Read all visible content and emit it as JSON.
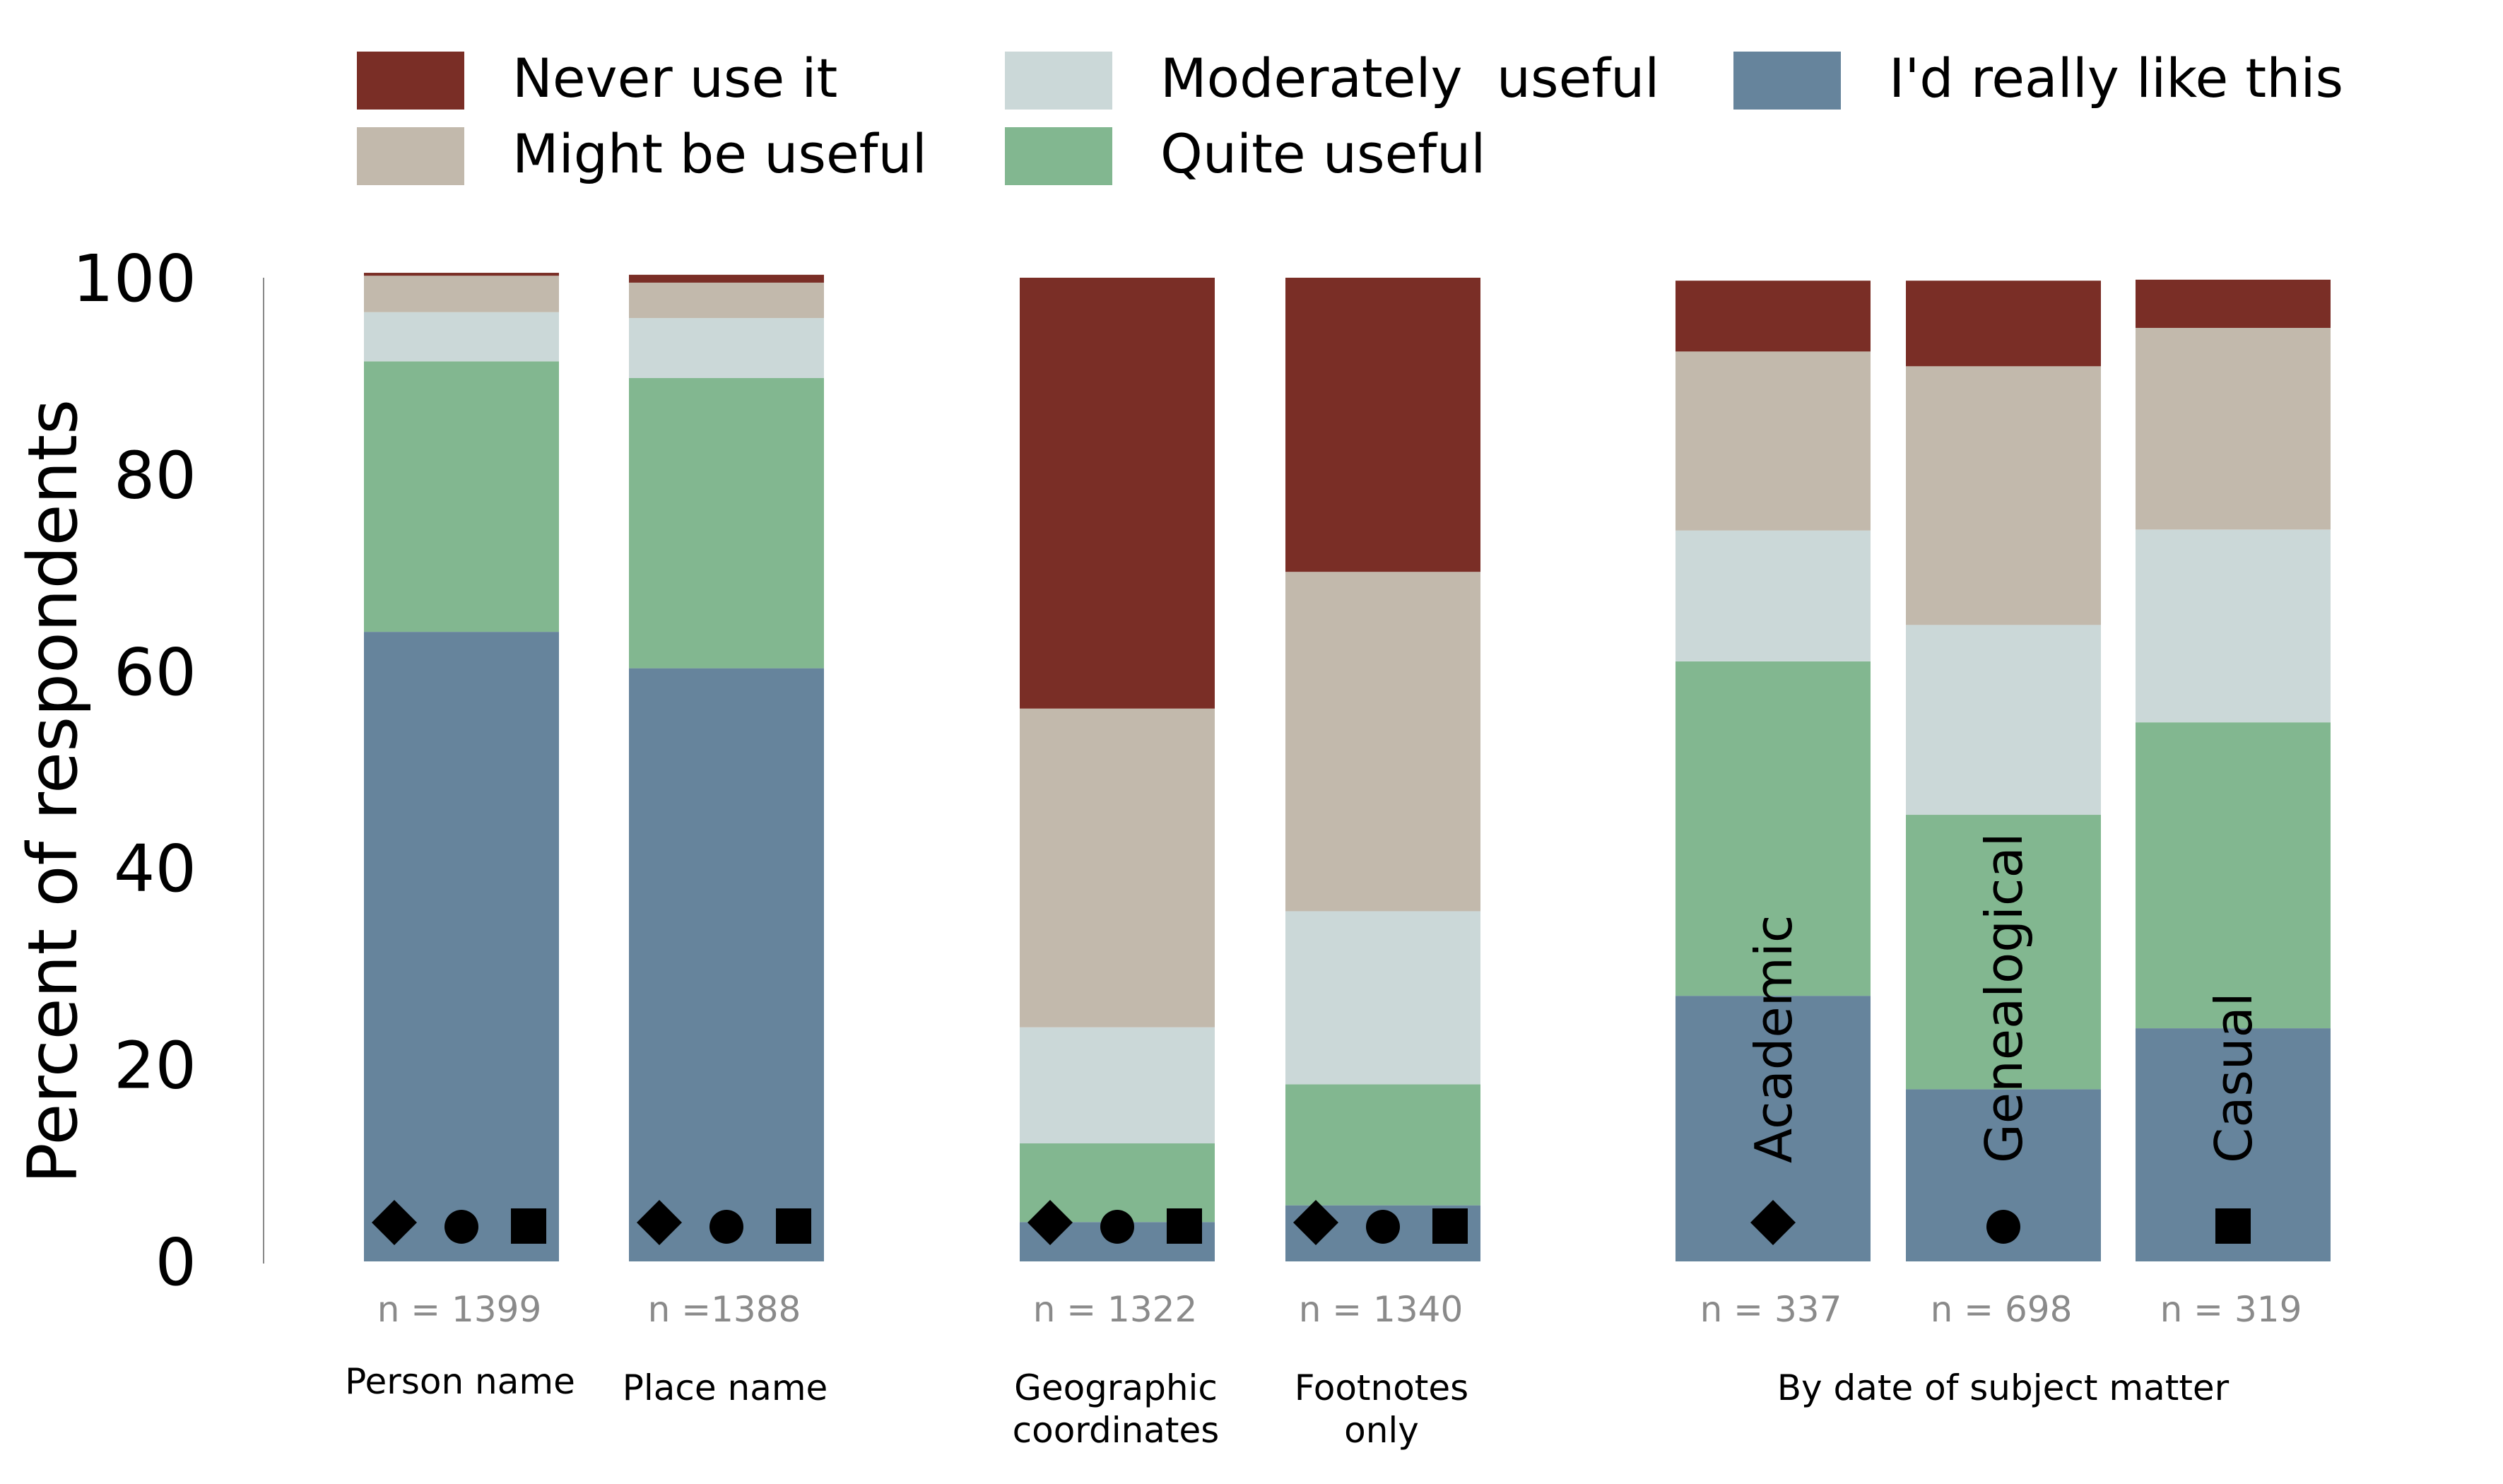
{
  "chart_data": {
    "type": "bar",
    "stacked": true,
    "ylabel": "Percent of respondents",
    "ylim": [
      0,
      100
    ],
    "yticks": [
      "0",
      "20",
      "40",
      "60",
      "80",
      "100"
    ],
    "grid": false,
    "legend_position": "top",
    "series": [
      {
        "key": "really_like",
        "name": "I'd really like this",
        "color": "#66849c"
      },
      {
        "key": "quite_useful",
        "name": "Quite useful",
        "color": "#82b790"
      },
      {
        "key": "moderately_useful",
        "name": "Moderately  useful",
        "color": "#cbd8d8"
      },
      {
        "key": "might_be_useful",
        "name": "Might be useful",
        "color": "#c2b9ac"
      },
      {
        "key": "never_use",
        "name": "Never use it",
        "color": "#7a2e26"
      }
    ],
    "bars": [
      {
        "n_label": "n = 1399",
        "category": "Person name",
        "values": [
          64,
          27.5,
          5,
          3.7,
          0.3
        ],
        "markers": [
          "diamond",
          "circle",
          "square"
        ]
      },
      {
        "n_label": "n =1388",
        "category": "Place name",
        "values": [
          60.3,
          29.5,
          6.1,
          3.6,
          0.8
        ],
        "markers": [
          "diamond",
          "circle",
          "square"
        ]
      },
      {
        "n_label": "n = 1322",
        "category": "Geographic\ncoordinates",
        "values": [
          4,
          8,
          11.8,
          32.4,
          43.8
        ],
        "markers": [
          "diamond",
          "circle",
          "square"
        ]
      },
      {
        "n_label": "n = 1340",
        "category": "Footnotes\nonly",
        "values": [
          5.7,
          12.3,
          17.6,
          34.5,
          29.9
        ],
        "markers": [
          "diamond",
          "circle",
          "square"
        ]
      },
      {
        "n_label": "n = 337",
        "bar_label": "Academic",
        "values": [
          27,
          34,
          13.3,
          18.2,
          7.2
        ],
        "markers": [
          "diamond"
        ]
      },
      {
        "n_label": "n = 698",
        "bar_label": "Genealogical",
        "values": [
          17.5,
          27.9,
          19.3,
          26.3,
          8.7
        ],
        "markers": [
          "circle"
        ]
      },
      {
        "n_label": "n = 319",
        "bar_label": "Casual",
        "values": [
          23.7,
          31.1,
          19.6,
          20.5,
          4.9
        ],
        "markers": [
          "square"
        ]
      }
    ],
    "group_labels": [
      {
        "text": "By date of subject matter",
        "bars": [
          4,
          5,
          6
        ]
      }
    ]
  }
}
